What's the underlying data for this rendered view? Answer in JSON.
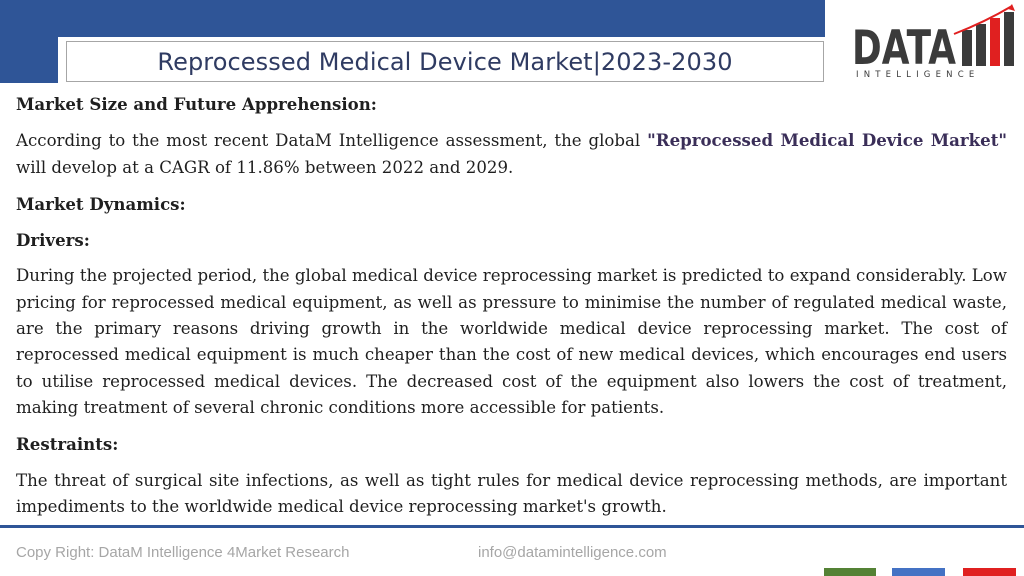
{
  "header": {
    "title": "Reprocessed Medical Device Market|2023-2030"
  },
  "logo": {
    "word": "DATA",
    "tagline": "INTELLIGENCE"
  },
  "content": {
    "section1_heading": "Market Size and Future Apprehension:",
    "section1_text_a": "According to the most recent DataM Intelligence assessment, the global ",
    "section1_highlight": "\"Reprocessed Medical Device Market\"",
    "section1_text_b": " will develop at a CAGR of 11.86% between 2022 and 2029.",
    "section2_heading": "Market Dynamics:",
    "drivers_heading": "Drivers:",
    "drivers_text": "During the projected period, the global medical device reprocessing market is predicted to expand considerably. Low pricing for reprocessed medical equipment, as well as pressure to minimise the number of regulated medical waste, are the primary reasons driving growth in the worldwide medical device reprocessing market. The cost of reprocessed medical equipment is much cheaper than the cost of new medical devices, which encourages end users to utilise reprocessed medical devices. The decreased cost of the equipment also lowers the cost of treatment, making treatment of several chronic conditions more accessible for patients.",
    "restraints_heading": "Restraints:",
    "restraints_text": "The threat of surgical site infections, as well as tight rules for medical device reprocessing methods, are important impediments to the worldwide medical device reprocessing market's growth."
  },
  "footer": {
    "copyright": "Copy Right: DataM Intelligence 4Market Research",
    "email": "info@datamintelligence.com"
  },
  "colors": {
    "header_band": "#2f5597",
    "title_text": "#2f3b62",
    "logo_dark": "#3b3b3b",
    "logo_red": "#e02020",
    "stripe_green": "#548235",
    "stripe_blue": "#4472c4",
    "stripe_red": "#e02020"
  }
}
